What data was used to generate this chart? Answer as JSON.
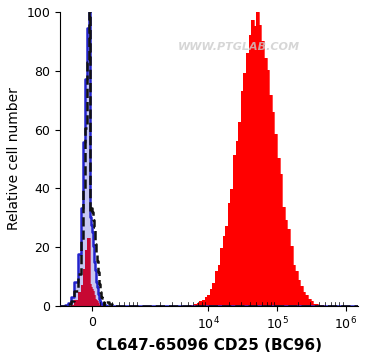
{
  "title": "",
  "xlabel": "CL647-65096 CD25 (BC96)",
  "ylabel": "Relative cell number",
  "ylim": [
    0,
    100
  ],
  "yticks": [
    0,
    20,
    40,
    60,
    80,
    100
  ],
  "watermark": "WWW.PTGLAB.COM",
  "watermark_color": "#cccccc",
  "bg_color": "#ffffff",
  "isotype_line_color": "#2222cc",
  "antibody_fill_color": "#ff0000",
  "dashed_color": "#111111",
  "xlabel_fontsize": 11,
  "ylabel_fontsize": 10,
  "linthresh": 300,
  "linscale": 0.15,
  "xlim_left": -600,
  "xlim_right": 1500000
}
